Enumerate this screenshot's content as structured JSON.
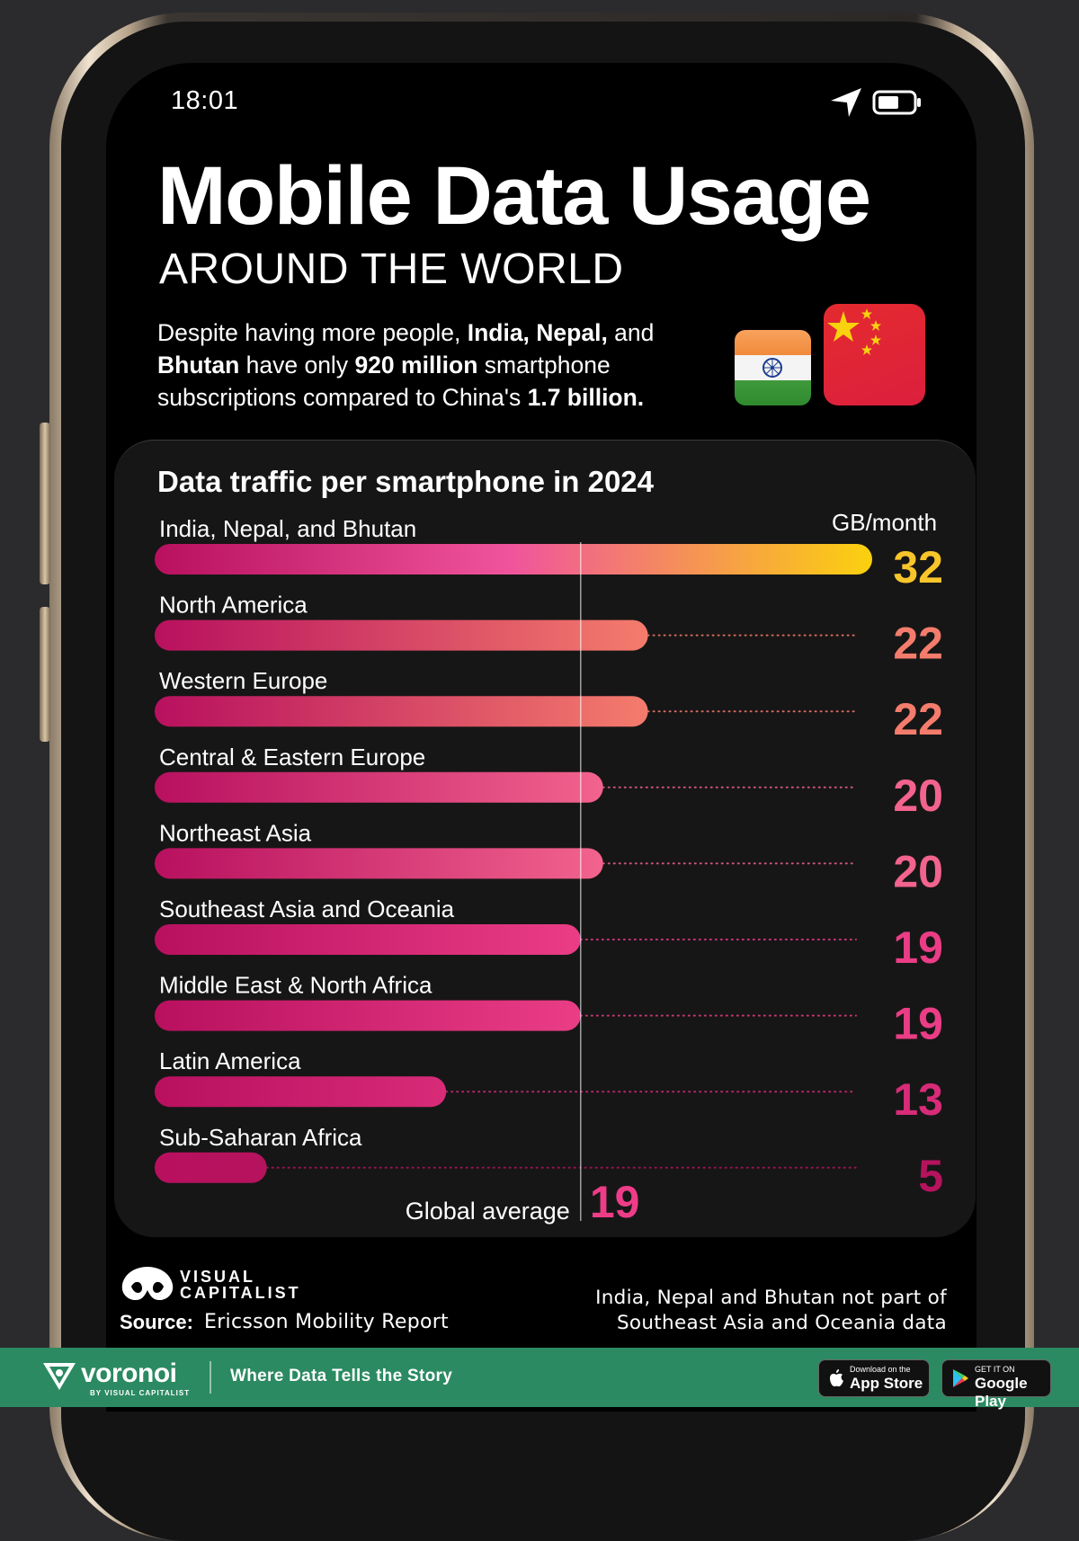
{
  "status_bar": {
    "time": "18:01"
  },
  "header": {
    "title": "Mobile Data Usage",
    "subtitle": "AROUND THE WORLD",
    "intro": [
      {
        "t": "Despite having more people, ",
        "b": false
      },
      {
        "t": "India, Nepal,",
        "b": true
      },
      {
        "t": " and ",
        "b": false
      },
      {
        "t": "Bhutan",
        "b": true
      },
      {
        "t": " have only ",
        "b": false
      },
      {
        "t": "920 million",
        "b": true
      },
      {
        "t": " smartphone subscriptions compared to China's ",
        "b": false
      },
      {
        "t": "1.7 billion.",
        "b": true
      }
    ]
  },
  "chart_data": {
    "type": "bar",
    "orientation": "horizontal",
    "title": "Data traffic per smartphone in 2024",
    "unit": "GB/month",
    "categories": [
      "India, Nepal, and Bhutan",
      "North America",
      "Western Europe",
      "Central & Eastern Europe",
      "Northeast Asia",
      "Southeast Asia and Oceania",
      "Middle East & North Africa",
      "Latin America",
      "Sub-Saharan Africa"
    ],
    "values": [
      32,
      22,
      22,
      20,
      20,
      19,
      19,
      13,
      5
    ],
    "value_colors": [
      "#f8c62a",
      "#f47c6c",
      "#f47c6c",
      "#f2638e",
      "#f2638e",
      "#ea3d86",
      "#ea3d86",
      "#d82b78",
      "#b5135e"
    ],
    "reference_line": {
      "label": "Global average",
      "value": 19
    }
  },
  "footer": {
    "brand": "VISUAL CAPITALIST",
    "source_label": "Source:",
    "source": "Ericsson Mobility Report",
    "note_lines": [
      "India, Nepal and Bhutan not part of",
      "Southeast Asia and Oceania data"
    ],
    "bar_brand": "voronoi",
    "bar_brand_sub": "BY VISUAL CAPITALIST",
    "tagline": "Where Data Tells the Story",
    "app_store_small": "Download on the",
    "app_store": "App Store",
    "google_small": "GET IT ON",
    "google": "Google Play"
  },
  "colors": {
    "bar_start": "#b8105f",
    "bar_mid": "#f0559c",
    "highlight_end": "#fbd10e",
    "footer_green": "#2b8a61"
  }
}
